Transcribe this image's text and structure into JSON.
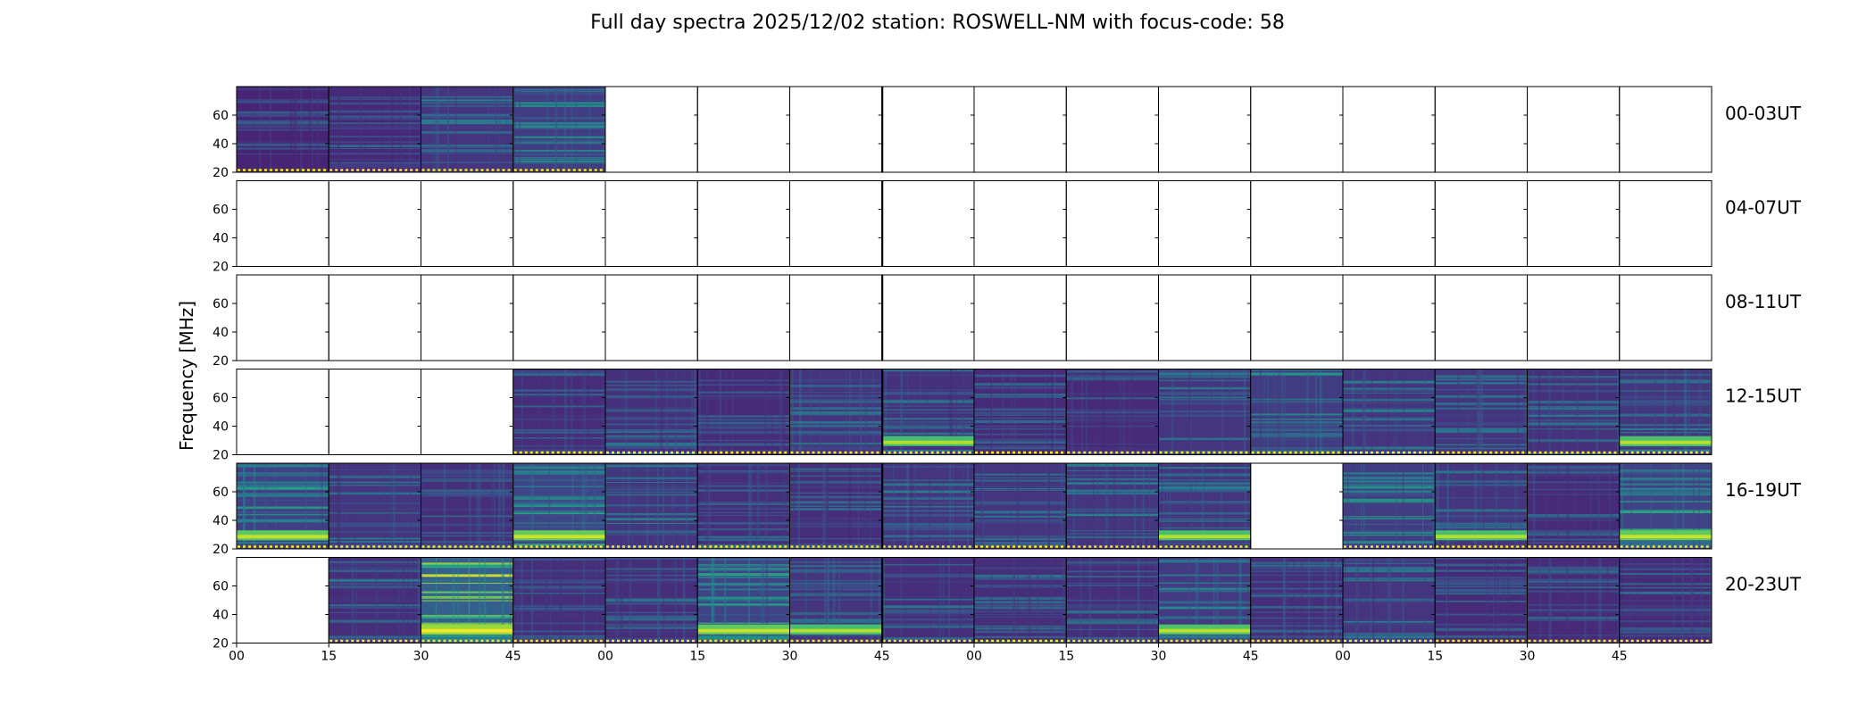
{
  "title": "Full day spectra 2025/12/02 station: ROSWELL-NM with focus-code: 58",
  "chart_data": {
    "type": "heatmap",
    "title": "Full day spectra 2025/12/02 station: ROSWELL-NM with focus-code: 58",
    "ylabel": "Frequency [MHz]",
    "xlabel": "",
    "colormap": "viridis",
    "ylim": [
      20,
      80
    ],
    "y_ticks": [
      "20",
      "40",
      "60"
    ],
    "x_ticks": [
      "00",
      "15",
      "30",
      "45",
      "00",
      "15",
      "30",
      "45",
      "00",
      "15",
      "30",
      "45",
      "00",
      "15",
      "30",
      "45"
    ],
    "grid": false,
    "rows": [
      {
        "label": "00-03UT",
        "panels": [
          {
            "data": true,
            "hot_band": false,
            "brightness": 0.2
          },
          {
            "data": true,
            "hot_band": false,
            "brightness": 0.22
          },
          {
            "data": true,
            "hot_band": false,
            "brightness": 0.3
          },
          {
            "data": true,
            "hot_band": false,
            "brightness": 0.35
          },
          {
            "data": false
          },
          {
            "data": false
          },
          {
            "data": false
          },
          {
            "data": false
          },
          {
            "data": false
          },
          {
            "data": false
          },
          {
            "data": false
          },
          {
            "data": false
          },
          {
            "data": false
          },
          {
            "data": false
          },
          {
            "data": false
          },
          {
            "data": false
          }
        ]
      },
      {
        "label": "04-07UT",
        "panels": [
          {
            "data": false
          },
          {
            "data": false
          },
          {
            "data": false
          },
          {
            "data": false
          },
          {
            "data": false
          },
          {
            "data": false
          },
          {
            "data": false
          },
          {
            "data": false
          },
          {
            "data": false
          },
          {
            "data": false
          },
          {
            "data": false
          },
          {
            "data": false
          },
          {
            "data": false
          },
          {
            "data": false
          },
          {
            "data": false
          },
          {
            "data": false
          }
        ]
      },
      {
        "label": "08-11UT",
        "panels": [
          {
            "data": false
          },
          {
            "data": false
          },
          {
            "data": false
          },
          {
            "data": false
          },
          {
            "data": false
          },
          {
            "data": false
          },
          {
            "data": false
          },
          {
            "data": false
          },
          {
            "data": false
          },
          {
            "data": false
          },
          {
            "data": false
          },
          {
            "data": false
          },
          {
            "data": false
          },
          {
            "data": false
          },
          {
            "data": false
          },
          {
            "data": false
          }
        ]
      },
      {
        "label": "12-15UT",
        "panels": [
          {
            "data": false
          },
          {
            "data": false
          },
          {
            "data": false
          },
          {
            "data": true,
            "hot_band": false,
            "brightness": 0.25
          },
          {
            "data": true,
            "hot_band": false,
            "brightness": 0.28
          },
          {
            "data": true,
            "hot_band": false,
            "brightness": 0.24
          },
          {
            "data": true,
            "hot_band": false,
            "brightness": 0.3
          },
          {
            "data": true,
            "hot_band": true,
            "brightness": 0.28
          },
          {
            "data": true,
            "hot_band": false,
            "brightness": 0.24
          },
          {
            "data": true,
            "hot_band": false,
            "brightness": 0.24
          },
          {
            "data": true,
            "hot_band": false,
            "brightness": 0.3
          },
          {
            "data": true,
            "hot_band": false,
            "brightness": 0.35
          },
          {
            "data": true,
            "hot_band": false,
            "brightness": 0.3
          },
          {
            "data": true,
            "hot_band": false,
            "brightness": 0.3
          },
          {
            "data": true,
            "hot_band": false,
            "brightness": 0.28
          },
          {
            "data": true,
            "hot_band": true,
            "brightness": 0.32
          }
        ]
      },
      {
        "label": "16-19UT",
        "panels": [
          {
            "data": true,
            "hot_band": true,
            "brightness": 0.38
          },
          {
            "data": true,
            "hot_band": false,
            "brightness": 0.3
          },
          {
            "data": true,
            "hot_band": false,
            "brightness": 0.26
          },
          {
            "data": true,
            "hot_band": true,
            "brightness": 0.42
          },
          {
            "data": true,
            "hot_band": false,
            "brightness": 0.3
          },
          {
            "data": true,
            "hot_band": false,
            "brightness": 0.26
          },
          {
            "data": true,
            "hot_band": false,
            "brightness": 0.26
          },
          {
            "data": true,
            "hot_band": false,
            "brightness": 0.3
          },
          {
            "data": true,
            "hot_band": false,
            "brightness": 0.3
          },
          {
            "data": true,
            "hot_band": false,
            "brightness": 0.3
          },
          {
            "data": true,
            "hot_band": true,
            "brightness": 0.3
          },
          {
            "data": false
          },
          {
            "data": true,
            "hot_band": false,
            "brightness": 0.36
          },
          {
            "data": true,
            "hot_band": true,
            "brightness": 0.3
          },
          {
            "data": true,
            "hot_band": false,
            "brightness": 0.24
          },
          {
            "data": true,
            "hot_band": true,
            "brightness": 0.4
          }
        ]
      },
      {
        "label": "20-23UT",
        "panels": [
          {
            "data": false
          },
          {
            "data": true,
            "hot_band": false,
            "brightness": 0.26
          },
          {
            "data": true,
            "hot_band": true,
            "brightness": 0.6
          },
          {
            "data": true,
            "hot_band": false,
            "brightness": 0.26
          },
          {
            "data": true,
            "hot_band": false,
            "brightness": 0.26
          },
          {
            "data": true,
            "hot_band": true,
            "brightness": 0.4
          },
          {
            "data": true,
            "hot_band": true,
            "brightness": 0.3
          },
          {
            "data": true,
            "hot_band": false,
            "brightness": 0.26
          },
          {
            "data": true,
            "hot_band": false,
            "brightness": 0.26
          },
          {
            "data": true,
            "hot_band": false,
            "brightness": 0.26
          },
          {
            "data": true,
            "hot_band": true,
            "brightness": 0.34
          },
          {
            "data": true,
            "hot_band": false,
            "brightness": 0.26
          },
          {
            "data": true,
            "hot_band": false,
            "brightness": 0.3
          },
          {
            "data": true,
            "hot_band": false,
            "brightness": 0.24
          },
          {
            "data": true,
            "hot_band": false,
            "brightness": 0.24
          },
          {
            "data": true,
            "hot_band": false,
            "brightness": 0.24
          }
        ]
      }
    ]
  }
}
